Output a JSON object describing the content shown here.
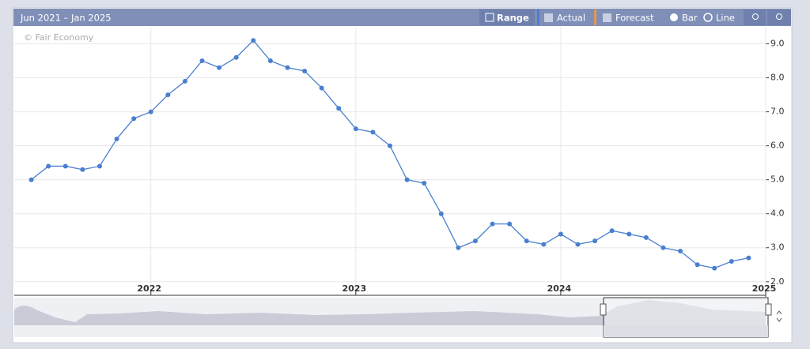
{
  "ui": {
    "range_label": "Jun 2021 – Jan 2025",
    "range_button": "Range",
    "actual": "Actual",
    "forecast": "Forecast",
    "bar": "Bar",
    "line": "Line",
    "watermark": "© Fair Economy"
  },
  "chart_data": {
    "type": "line",
    "x": [
      "2021-06",
      "2021-07",
      "2021-08",
      "2021-09",
      "2021-10",
      "2021-11",
      "2021-12",
      "2022-01",
      "2022-02",
      "2022-03",
      "2022-04",
      "2022-05",
      "2022-06",
      "2022-07",
      "2022-08",
      "2022-09",
      "2022-10",
      "2022-11",
      "2022-12",
      "2023-01",
      "2023-02",
      "2023-03",
      "2023-04",
      "2023-05",
      "2023-06",
      "2023-07",
      "2023-08",
      "2023-09",
      "2023-10",
      "2023-11",
      "2023-12",
      "2024-01",
      "2024-02",
      "2024-03",
      "2024-04",
      "2024-05",
      "2024-06",
      "2024-07",
      "2024-08",
      "2024-09",
      "2024-10",
      "2024-11",
      "2024-12"
    ],
    "series": [
      {
        "name": "Actual",
        "color": "#4a7fd0",
        "values": [
          5.0,
          5.4,
          5.4,
          5.3,
          5.4,
          6.2,
          6.8,
          7.0,
          7.5,
          7.9,
          8.5,
          8.3,
          8.6,
          9.1,
          8.5,
          8.3,
          8.2,
          7.7,
          7.1,
          6.5,
          6.4,
          6.0,
          5.0,
          4.9,
          4.0,
          3.0,
          3.2,
          3.7,
          3.7,
          3.2,
          3.1,
          3.4,
          3.1,
          3.2,
          3.5,
          3.4,
          3.3,
          3.0,
          2.9,
          2.5,
          2.4,
          2.6,
          2.7
        ]
      }
    ],
    "xlim": [
      "2021-05",
      "2025-01"
    ],
    "xticks": [
      {
        "value": "2022-01",
        "label": "2022"
      },
      {
        "value": "2023-01",
        "label": "2023"
      },
      {
        "value": "2024-01",
        "label": "2024"
      },
      {
        "value": "2025-01",
        "label": "2025"
      }
    ],
    "ylim": [
      1.6,
      9.5
    ],
    "yticks": [
      {
        "value": 2,
        "label": "2.0"
      },
      {
        "value": 3,
        "label": "3.0"
      },
      {
        "value": 4,
        "label": "4.0"
      },
      {
        "value": 5,
        "label": "5.0"
      },
      {
        "value": 6,
        "label": "6.0"
      },
      {
        "value": 7,
        "label": "7.0"
      },
      {
        "value": 8,
        "label": "8.0"
      },
      {
        "value": 9,
        "label": "9.0"
      }
    ],
    "grid": true
  }
}
